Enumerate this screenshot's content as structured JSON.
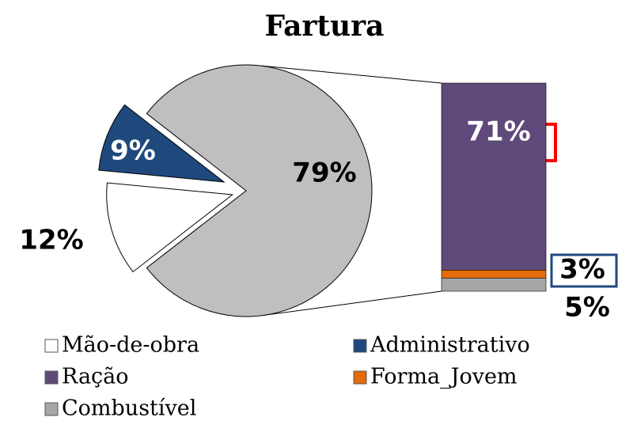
{
  "chart_data": {
    "type": "pie",
    "title": "Fartura",
    "slices": [
      {
        "name": "Mão-de-obra",
        "value": 12,
        "value_label": "12%",
        "color": "#ffffff"
      },
      {
        "name": "Administrativo",
        "value": 9,
        "value_label": "9%",
        "color": "#1f497d"
      },
      {
        "value": 79,
        "value_label": "79%",
        "color": "#bfbfbf"
      }
    ],
    "bar_segments": [
      {
        "name": "Ração",
        "value": 71,
        "value_label": "71%",
        "color": "#5f497a"
      },
      {
        "name": "Forma_Jovem",
        "value": 3,
        "value_label": "3%",
        "color": "#e46c0a"
      },
      {
        "name": "Combustível",
        "value": 5,
        "value_label": "5%",
        "color": "#a6a6a6"
      }
    ]
  }
}
